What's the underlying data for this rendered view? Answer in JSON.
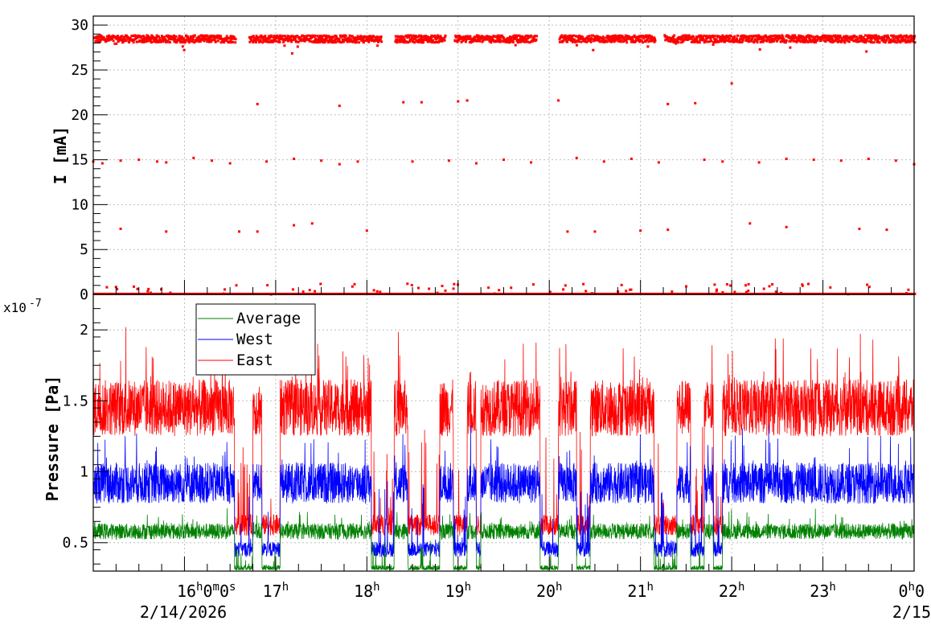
{
  "chart_data": [
    {
      "type": "scatter",
      "ylabel": "I [mA]",
      "ylim": [
        0,
        31
      ],
      "yticks": [
        "0",
        "5",
        "10",
        "15",
        "20",
        "25",
        "30"
      ],
      "grid": true,
      "color": "#ff0000",
      "series": [
        {
          "main_level_mA": 28.5,
          "gaps_hours": [
            [
              16.55,
              16.7
            ],
            [
              18.15,
              18.3
            ],
            [
              18.85,
              18.95
            ],
            [
              19.85,
              20.1
            ],
            [
              21.15,
              21.25
            ]
          ],
          "spike_points": [
            [
              15.0,
              14.8
            ],
            [
              15.1,
              14.6
            ],
            [
              15.3,
              14.9
            ],
            [
              15.5,
              15.0
            ],
            [
              15.7,
              14.8
            ],
            [
              15.8,
              14.7
            ],
            [
              16.1,
              15.2
            ],
            [
              16.3,
              14.9
            ],
            [
              16.5,
              14.6
            ],
            [
              16.9,
              14.8
            ],
            [
              17.2,
              15.1
            ],
            [
              17.5,
              14.9
            ],
            [
              17.7,
              14.5
            ],
            [
              17.9,
              14.8
            ],
            [
              18.5,
              14.8
            ],
            [
              18.9,
              14.9
            ],
            [
              19.2,
              14.6
            ],
            [
              19.5,
              15.0
            ],
            [
              19.8,
              14.7
            ],
            [
              20.3,
              15.2
            ],
            [
              20.6,
              14.8
            ],
            [
              20.9,
              15.1
            ],
            [
              21.2,
              14.7
            ],
            [
              21.7,
              15.0
            ],
            [
              21.9,
              14.8
            ],
            [
              22.3,
              14.7
            ],
            [
              22.6,
              15.1
            ],
            [
              22.9,
              15.0
            ],
            [
              23.2,
              14.9
            ],
            [
              23.5,
              15.1
            ],
            [
              23.8,
              14.9
            ],
            [
              24.0,
              14.5
            ],
            [
              15.3,
              7.3
            ],
            [
              15.8,
              7.0
            ],
            [
              16.6,
              7.0
            ],
            [
              16.8,
              7.0
            ],
            [
              17.2,
              7.7
            ],
            [
              17.4,
              7.9
            ],
            [
              18.0,
              7.1
            ],
            [
              20.2,
              7.0
            ],
            [
              20.5,
              7.0
            ],
            [
              21.0,
              7.1
            ],
            [
              21.3,
              7.2
            ],
            [
              22.2,
              7.9
            ],
            [
              22.6,
              7.5
            ],
            [
              23.4,
              7.3
            ],
            [
              23.7,
              7.2
            ],
            [
              16.8,
              21.2
            ],
            [
              17.7,
              21.0
            ],
            [
              18.4,
              21.4
            ],
            [
              18.6,
              21.4
            ],
            [
              19.0,
              21.5
            ],
            [
              19.1,
              21.6
            ],
            [
              20.1,
              21.6
            ],
            [
              21.3,
              21.2
            ],
            [
              21.6,
              21.3
            ],
            [
              22.0,
              23.5
            ]
          ],
          "low_points_mA": 0.8
        }
      ]
    },
    {
      "type": "line",
      "ylabel": "Pressure [Pa]",
      "exponent_label": "x10",
      "exponent_sup": "-7",
      "ylim": [
        3e-08,
        2.25e-07
      ],
      "yticks": [
        "0.5",
        "1",
        "1.5",
        "2"
      ],
      "grid": true,
      "x_start_hour": 15.0,
      "x_end_hour": 24.0,
      "xticks": [
        "16",
        "17",
        "18",
        "19",
        "20",
        "21",
        "22",
        "23",
        "0"
      ],
      "xtick_first_text": "16",
      "xtick_first_sup_h": "h",
      "xtick_first_sup_m": "m",
      "xtick_first_sup_s": "s",
      "xtick_zero": "0",
      "xtick_sup": "h",
      "date_start": "2/14/2026",
      "date_end": "2/15",
      "legend_entries": [
        "Average",
        "West",
        "East"
      ],
      "legend_position": "top-left",
      "series": [
        {
          "name": "East",
          "color": "#ff0000",
          "normal_level": 1.45,
          "low_level": 0.55,
          "noise": 0.25
        },
        {
          "name": "West",
          "color": "#0000ff",
          "normal_level": 0.92,
          "low_level": 0.4,
          "noise": 0.18
        },
        {
          "name": "Average",
          "color": "#008000",
          "normal_level": 0.58,
          "low_level": 0.3,
          "noise": 0.07
        }
      ],
      "outage_windows_hours": [
        [
          16.55,
          16.75
        ],
        [
          16.85,
          17.05
        ],
        [
          18.05,
          18.3
        ],
        [
          18.45,
          18.8
        ],
        [
          18.95,
          19.1
        ],
        [
          19.2,
          19.25
        ],
        [
          19.9,
          20.1
        ],
        [
          20.3,
          20.45
        ],
        [
          21.15,
          21.4
        ],
        [
          21.55,
          21.7
        ],
        [
          21.8,
          21.9
        ]
      ]
    }
  ]
}
